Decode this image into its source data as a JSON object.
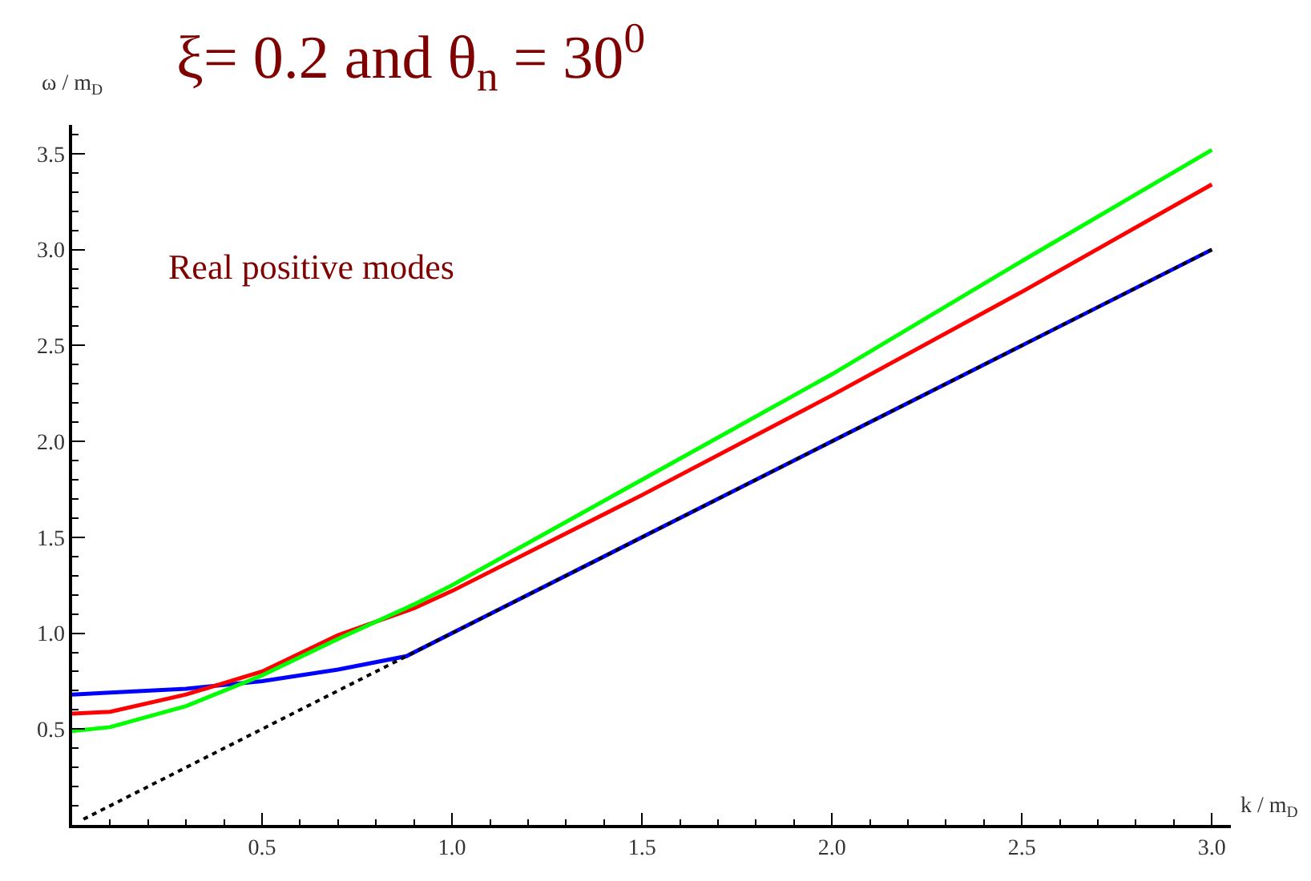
{
  "chart_data": {
    "type": "line",
    "title": "ξ= 0.2 and θ$_{n}$ = 30$^{0}$",
    "xlabel": "k / m$_{D}$",
    "ylabel": "ω / m$_{D}$",
    "annotations": [
      "Real positive modes"
    ],
    "xlim": [
      0,
      3.05
    ],
    "ylim": [
      0,
      3.65
    ],
    "xticks": [
      0.5,
      {
        "value": 1,
        "label": "1.0"
      },
      1.5,
      {
        "value": 2,
        "label": "2.0"
      },
      2.5,
      {
        "value": 3,
        "label": "3.0"
      }
    ],
    "yticks": [
      0.5,
      {
        "value": 1,
        "label": "1.0"
      },
      1.5,
      {
        "value": 2,
        "label": "2.0"
      },
      2.5,
      {
        "value": 3,
        "label": "3.0"
      },
      3.5
    ],
    "legend": false,
    "marker": "none",
    "series": [
      {
        "color": "#0000ff",
        "line_style": "solid",
        "x": [
          0,
          0.1,
          0.3,
          0.5,
          0.7,
          0.88,
          1.0,
          1.5,
          2.0,
          2.5,
          3.0
        ],
        "values": [
          0.68,
          0.69,
          0.71,
          0.75,
          0.81,
          0.88,
          1.0,
          1.5,
          2.0,
          2.5,
          3.0
        ]
      },
      {
        "color": "#ff0000",
        "line_style": "solid",
        "x": [
          0,
          0.1,
          0.3,
          0.5,
          0.7,
          0.9,
          1.0,
          1.5,
          2.0,
          2.5,
          3.0
        ],
        "values": [
          0.58,
          0.59,
          0.68,
          0.8,
          0.99,
          1.13,
          1.22,
          1.72,
          2.24,
          2.78,
          3.34
        ]
      },
      {
        "color": "#00ff00",
        "line_style": "solid",
        "x": [
          0,
          0.1,
          0.3,
          0.5,
          0.7,
          0.9,
          1.0,
          1.5,
          2.0,
          2.5,
          3.0
        ],
        "values": [
          0.49,
          0.51,
          0.62,
          0.78,
          0.97,
          1.15,
          1.25,
          1.8,
          2.35,
          2.94,
          3.52
        ]
      },
      {
        "color": "#000000",
        "line_style": "dotted",
        "x": [
          0.03,
          0.5,
          1.0,
          1.5,
          2.0,
          2.5,
          3.0
        ],
        "values": [
          0.03,
          0.5,
          1.0,
          1.5,
          2.0,
          2.5,
          3.0
        ]
      }
    ]
  }
}
